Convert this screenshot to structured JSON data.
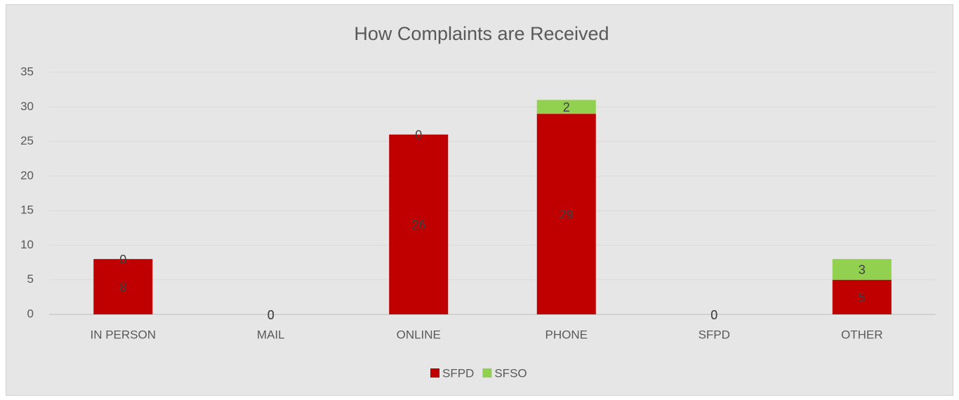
{
  "chart_data": {
    "type": "bar",
    "stacked": true,
    "title": "How Complaints are Received",
    "categories": [
      "IN PERSON",
      "MAIL",
      "ONLINE",
      "PHONE",
      "SFPD",
      "OTHER"
    ],
    "series": [
      {
        "name": "SFPD",
        "color": "#c00000",
        "values": [
          8,
          0,
          26,
          29,
          0,
          5
        ]
      },
      {
        "name": "SFSO",
        "color": "#92d050",
        "values": [
          0,
          0,
          0,
          2,
          0,
          3
        ]
      }
    ],
    "ylim": [
      0,
      35
    ],
    "yticks": [
      0,
      5,
      10,
      15,
      20,
      25,
      30,
      35
    ],
    "grid": true,
    "legend": "bottom"
  }
}
